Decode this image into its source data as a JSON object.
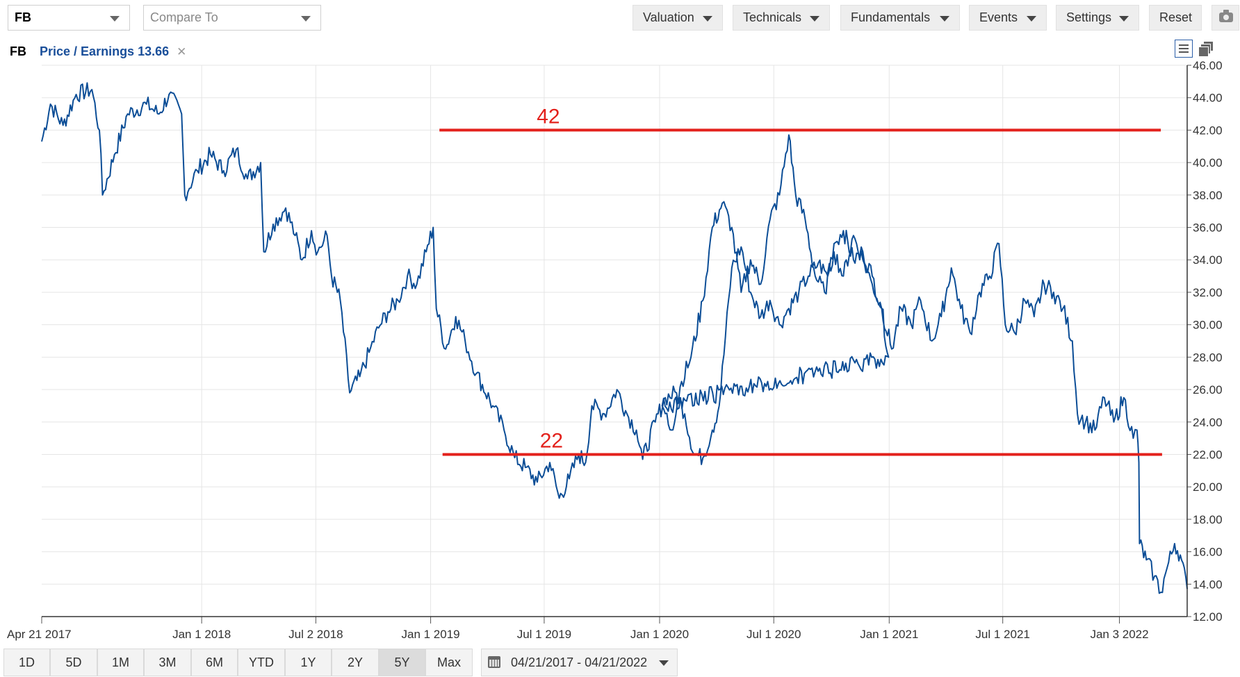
{
  "toolbar": {
    "symbol": "FB",
    "compare_placeholder": "Compare To",
    "menus": [
      "Valuation",
      "Technicals",
      "Fundamentals",
      "Events",
      "Settings"
    ],
    "reset_label": "Reset",
    "camera_icon": "camera-icon"
  },
  "legend": {
    "symbol": "FB",
    "study": "Price / Earnings 13.66",
    "close": "✕"
  },
  "ranges": {
    "buttons": [
      "1D",
      "5D",
      "1M",
      "3M",
      "6M",
      "YTD",
      "1Y",
      "2Y",
      "5Y",
      "Max"
    ],
    "active": "5Y",
    "date_range": "04/21/2017 - 04/21/2022"
  },
  "colors": {
    "line": "#0b4d96",
    "annotation": "#e3211c",
    "grid": "#e5e5e5"
  },
  "chart_data": {
    "type": "line",
    "title": "",
    "xlabel": "",
    "ylabel": "",
    "ylim": [
      12,
      46
    ],
    "y_ticks": [
      "46.00",
      "44.00",
      "42.00",
      "40.00",
      "38.00",
      "36.00",
      "34.00",
      "32.00",
      "30.00",
      "28.00",
      "26.00",
      "24.00",
      "22.00",
      "20.00",
      "18.00",
      "16.00",
      "14.00",
      "12.00"
    ],
    "x_range": [
      "2017-04-21",
      "2022-04-21"
    ],
    "x_ticks": [
      {
        "date": "2017-04-21",
        "label": "Apr 21 2017"
      },
      {
        "date": "2018-01-01",
        "label": "Jan 1 2018"
      },
      {
        "date": "2018-07-02",
        "label": "Jul 2 2018"
      },
      {
        "date": "2019-01-01",
        "label": "Jan 1 2019"
      },
      {
        "date": "2019-07-01",
        "label": "Jul 1 2019"
      },
      {
        "date": "2020-01-01",
        "label": "Jan 1 2020"
      },
      {
        "date": "2020-07-01",
        "label": "Jul 1 2020"
      },
      {
        "date": "2021-01-01",
        "label": "Jan 1 2021"
      },
      {
        "date": "2021-07-01",
        "label": "Jul 1 2021"
      },
      {
        "date": "2022-01-03",
        "label": "Jan 3 2022"
      }
    ],
    "grid": true,
    "series": [
      {
        "points": [
          [
            "2017-04-21",
            41.3
          ],
          [
            "2017-05-05",
            43.6
          ],
          [
            "2017-05-25",
            42.3
          ],
          [
            "2017-06-15",
            44.2
          ],
          [
            "2017-07-10",
            44.5
          ],
          [
            "2017-07-22",
            42.0
          ],
          [
            "2017-07-27",
            38.0
          ],
          [
            "2017-08-15",
            40.5
          ],
          [
            "2017-09-05",
            43.0
          ],
          [
            "2017-10-05",
            43.6
          ],
          [
            "2017-10-25",
            43.0
          ],
          [
            "2017-11-10",
            44.2
          ],
          [
            "2017-11-30",
            43.0
          ],
          [
            "2017-12-05",
            38.0
          ],
          [
            "2017-12-25",
            39.5
          ],
          [
            "2018-01-15",
            40.5
          ],
          [
            "2018-02-05",
            39.5
          ],
          [
            "2018-02-25",
            40.8
          ],
          [
            "2018-03-15",
            39.0
          ],
          [
            "2018-04-05",
            40.0
          ],
          [
            "2018-04-10",
            34.5
          ],
          [
            "2018-04-25",
            36.2
          ],
          [
            "2018-05-15",
            37.2
          ],
          [
            "2018-05-30",
            35.5
          ],
          [
            "2018-06-10",
            34.0
          ],
          [
            "2018-06-25",
            35.8
          ],
          [
            "2018-07-05",
            34.5
          ],
          [
            "2018-07-20",
            35.5
          ],
          [
            "2018-07-27",
            33.0
          ],
          [
            "2018-08-10",
            31.5
          ],
          [
            "2018-08-25",
            25.8
          ],
          [
            "2018-09-10",
            26.8
          ],
          [
            "2018-09-25",
            28.3
          ],
          [
            "2018-10-10",
            29.8
          ],
          [
            "2018-10-25",
            30.8
          ],
          [
            "2018-11-10",
            31.5
          ],
          [
            "2018-11-25",
            33.0
          ],
          [
            "2018-12-10",
            32.5
          ],
          [
            "2018-12-25",
            34.5
          ],
          [
            "2019-01-05",
            36.0
          ],
          [
            "2019-01-10",
            31.0
          ],
          [
            "2019-01-25",
            28.5
          ],
          [
            "2019-02-10",
            30.5
          ],
          [
            "2019-02-25",
            29.0
          ],
          [
            "2019-03-15",
            27.0
          ],
          [
            "2019-04-10",
            25.0
          ],
          [
            "2019-04-28",
            23.5
          ],
          [
            "2019-05-15",
            21.8
          ],
          [
            "2019-06-01",
            21.2
          ],
          [
            "2019-06-20",
            20.3
          ],
          [
            "2019-07-10",
            21.5
          ],
          [
            "2019-07-25",
            19.3
          ],
          [
            "2019-08-10",
            20.5
          ],
          [
            "2019-08-25",
            22.0
          ],
          [
            "2019-09-05",
            21.5
          ],
          [
            "2019-09-15",
            25.0
          ],
          [
            "2019-10-05",
            24.5
          ],
          [
            "2019-10-25",
            26.0
          ],
          [
            "2019-11-10",
            24.5
          ],
          [
            "2019-11-25",
            23.5
          ],
          [
            "2019-12-05",
            21.7
          ],
          [
            "2019-12-25",
            24.0
          ],
          [
            "2020-01-10",
            25.5
          ],
          [
            "2020-01-28",
            25.8
          ],
          [
            "2020-02-10",
            24.5
          ],
          [
            "2020-02-25",
            22.0
          ],
          [
            "2020-03-10",
            21.8
          ],
          [
            "2020-03-25",
            23.5
          ],
          [
            "2020-04-05",
            25.0
          ],
          [
            "2020-04-25",
            33.5
          ],
          [
            "2020-05-10",
            34.8
          ],
          [
            "2020-05-25",
            32.0
          ],
          [
            "2020-06-10",
            30.5
          ],
          [
            "2020-06-25",
            31.5
          ],
          [
            "2020-07-10",
            30.0
          ],
          [
            "2020-07-25",
            31.0
          ],
          [
            "2020-08-10",
            32.0
          ],
          [
            "2020-08-25",
            33.0
          ],
          [
            "2020-09-10",
            33.8
          ],
          [
            "2020-09-25",
            33.0
          ],
          [
            "2020-10-05",
            35.0
          ],
          [
            "2020-10-20",
            35.8
          ],
          [
            "2020-11-05",
            34.0
          ],
          [
            "2020-11-20",
            34.5
          ],
          [
            "2020-12-05",
            33.0
          ],
          [
            "2020-12-20",
            31.0
          ],
          [
            "2020-12-31",
            28.0
          ],
          [
            "2020-01-05",
            25.0
          ],
          [
            "2020-01-20",
            23.5
          ],
          [
            "2020-02-05",
            26.5
          ],
          [
            "2020-02-20",
            28.0
          ],
          [
            "2020-03-10",
            31.5
          ],
          [
            "2020-03-25",
            36.0
          ],
          [
            "2020-04-10",
            37.5
          ],
          [
            "2020-04-25",
            36.0
          ],
          [
            "2020-05-10",
            32.0
          ],
          [
            "2020-05-25",
            34.0
          ],
          [
            "2020-06-10",
            32.5
          ],
          [
            "2020-06-25",
            36.5
          ],
          [
            "2020-07-10",
            38.0
          ],
          [
            "2020-07-25",
            41.7
          ],
          [
            "2020-08-05",
            38.0
          ],
          [
            "2020-08-20",
            36.5
          ],
          [
            "2020-09-05",
            33.0
          ],
          [
            "2020-09-20",
            32.0
          ],
          [
            "2020-10-05",
            34.5
          ],
          [
            "2020-10-20",
            33.0
          ],
          [
            "2020-11-05",
            35.5
          ],
          [
            "2020-11-20",
            34.0
          ],
          [
            "2020-12-05",
            32.5
          ],
          [
            "2020-12-20",
            31.0
          ],
          [
            "2021-01-05",
            28.5
          ],
          [
            "2021-01-20",
            31.0
          ],
          [
            "2021-02-05",
            30.0
          ],
          [
            "2021-02-20",
            31.5
          ],
          [
            "2021-03-10",
            29.0
          ],
          [
            "2021-03-25",
            30.5
          ],
          [
            "2021-04-10",
            33.5
          ],
          [
            "2021-04-25",
            31.0
          ],
          [
            "2021-05-10",
            29.5
          ],
          [
            "2021-05-25",
            32.0
          ],
          [
            "2021-06-10",
            33.0
          ],
          [
            "2021-06-25",
            35.0
          ],
          [
            "2021-07-05",
            30.0
          ],
          [
            "2021-07-20",
            29.5
          ],
          [
            "2021-08-05",
            31.5
          ],
          [
            "2021-08-20",
            30.5
          ],
          [
            "2021-09-05",
            32.5
          ],
          [
            "2021-09-20",
            32.0
          ],
          [
            "2021-10-05",
            31.0
          ],
          [
            "2021-10-20",
            29.0
          ],
          [
            "2021-10-28",
            24.5
          ],
          [
            "2021-11-10",
            24.0
          ],
          [
            "2021-11-25",
            23.5
          ],
          [
            "2021-12-10",
            25.5
          ],
          [
            "2021-12-25",
            24.0
          ],
          [
            "2022-01-10",
            25.5
          ],
          [
            "2022-01-25",
            23.0
          ],
          [
            "2022-01-31",
            23.5
          ],
          [
            "2022-02-03",
            21.5
          ],
          [
            "2022-02-04",
            16.5
          ],
          [
            "2022-02-15",
            15.5
          ],
          [
            "2022-02-28",
            14.5
          ],
          [
            "2022-03-10",
            13.5
          ],
          [
            "2022-03-20",
            15.0
          ],
          [
            "2022-04-01",
            16.5
          ],
          [
            "2022-04-10",
            15.8
          ],
          [
            "2022-04-21",
            13.7
          ]
        ]
      }
    ],
    "annotations": [
      {
        "type": "hline",
        "y": 42,
        "x_start": "2019-01-15",
        "x_end": "2022-03-10",
        "label": "42"
      },
      {
        "type": "hline",
        "y": 22,
        "x_start": "2019-01-20",
        "x_end": "2022-03-12",
        "label": "22"
      }
    ]
  }
}
